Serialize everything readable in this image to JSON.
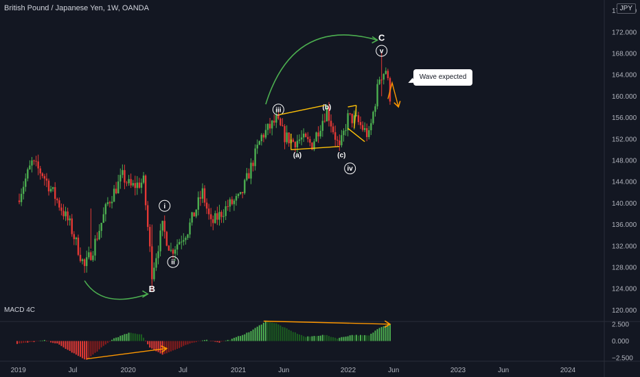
{
  "header": {
    "title": "British Pound / Japanese Yen, 1W, OANDA",
    "currency": "JPY",
    "indicator": "MACD 4C"
  },
  "colors": {
    "background": "#131722",
    "up": "#4caf50",
    "down": "#e53935",
    "macd_green": "#4caf50",
    "macd_light_green": "#1b5e20",
    "macd_red": "#e53935",
    "macd_dark_red": "#8b1c1c",
    "green_arrow": "#4caf50",
    "orange": "#ff9800",
    "yellow_line": "#ffc107",
    "label": "#ffffff"
  },
  "annotations": {
    "callout": "Wave expected",
    "wave_labels": {
      "B": "B",
      "C": "C",
      "i": "i",
      "ii": "ii",
      "iii": "iii",
      "iv": "iv",
      "v": "v",
      "a": "(a)",
      "b": "(b)",
      "c": "(c)"
    }
  },
  "chart_data": [
    {
      "type": "candlestick",
      "title": "British Pound / Japanese Yen, 1W, OANDA",
      "ylim": [
        118,
        178
      ],
      "y_ticks": [
        "176.000",
        "172.000",
        "168.000",
        "164.000",
        "160.000",
        "156.000",
        "152.000",
        "148.000",
        "144.000",
        "140.000",
        "136.000",
        "132.000",
        "128.000",
        "124.000",
        "120.000"
      ],
      "x_ticks": [
        "2019",
        "Jul",
        "2020",
        "Jul",
        "2021",
        "Jun",
        "2022",
        "Jun",
        "2023",
        "Jun",
        "2024"
      ],
      "close_path": [
        {
          "date": "2018-12-28",
          "close": 140.5
        },
        {
          "date": "2019-02-15",
          "close": 147.5
        },
        {
          "date": "2019-03-22",
          "close": 145.5
        },
        {
          "date": "2019-05-10",
          "close": 140.5
        },
        {
          "date": "2019-06-21",
          "close": 136.0
        },
        {
          "date": "2019-08-09",
          "close": 128.0
        },
        {
          "date": "2019-09-06",
          "close": 131.5
        },
        {
          "date": "2019-10-25",
          "close": 140.0
        },
        {
          "date": "2019-12-13",
          "close": 145.0
        },
        {
          "date": "2020-01-10",
          "close": 143.0
        },
        {
          "date": "2020-02-21",
          "close": 144.0
        },
        {
          "date": "2020-03-20",
          "close": 127.0
        },
        {
          "date": "2020-04-24",
          "close": 135.5
        },
        {
          "date": "2020-05-22",
          "close": 131.0
        },
        {
          "date": "2020-07-17",
          "close": 135.0
        },
        {
          "date": "2020-09-04",
          "close": 142.0
        },
        {
          "date": "2020-10-02",
          "close": 136.0
        },
        {
          "date": "2020-11-27",
          "close": 139.5
        },
        {
          "date": "2021-01-08",
          "close": 141.0
        },
        {
          "date": "2021-03-19",
          "close": 152.5
        },
        {
          "date": "2021-05-07",
          "close": 155.5
        },
        {
          "date": "2021-06-04",
          "close": 152.5
        },
        {
          "date": "2021-07-02",
          "close": 151.5
        },
        {
          "date": "2021-07-30",
          "close": 152.0
        },
        {
          "date": "2021-09-03",
          "close": 151.0
        },
        {
          "date": "2021-10-22",
          "close": 157.5
        },
        {
          "date": "2021-12-03",
          "close": 150.0
        },
        {
          "date": "2021-12-31",
          "close": 156.0
        },
        {
          "date": "2022-01-28",
          "close": 155.5
        },
        {
          "date": "2022-03-11",
          "close": 152.5
        },
        {
          "date": "2022-04-15",
          "close": 163.5
        },
        {
          "date": "2022-05-06",
          "close": 165.0
        },
        {
          "date": "2022-05-20",
          "close": 160.0
        }
      ],
      "wave_points": [
        {
          "label": "B",
          "date": "2020-03-20",
          "price": 124.0
        },
        {
          "label": "i",
          "date": "2020-05-01",
          "price": 139.5
        },
        {
          "label": "ii",
          "date": "2020-05-29",
          "price": 129.0
        },
        {
          "label": "iii",
          "date": "2021-05-14",
          "price": 157.5
        },
        {
          "label": "(a)",
          "date": "2021-07-16",
          "price": 149.0
        },
        {
          "label": "(b)",
          "date": "2021-10-22",
          "price": 158.0
        },
        {
          "label": "(c)",
          "date": "2021-12-10",
          "price": 149.0
        },
        {
          "label": "iv",
          "date": "2022-01-07",
          "price": 146.5
        },
        {
          "label": "v",
          "date": "2022-04-22",
          "price": 168.5
        },
        {
          "label": "C",
          "date": "2022-04-22",
          "price": 171.0
        }
      ]
    },
    {
      "type": "bar",
      "title": "MACD 4C",
      "ylim": [
        -3.0,
        3.0
      ],
      "y_ticks": [
        "2.500",
        "0.000",
        "−2.500"
      ],
      "anchors": [
        {
          "date": "2018-12-28",
          "value": -0.4
        },
        {
          "date": "2019-02-08",
          "value": -0.2
        },
        {
          "date": "2019-03-29",
          "value": 0.1
        },
        {
          "date": "2019-05-10",
          "value": -0.4
        },
        {
          "date": "2019-06-21",
          "value": -1.5
        },
        {
          "date": "2019-07-26",
          "value": -2.4
        },
        {
          "date": "2019-08-16",
          "value": -2.8
        },
        {
          "date": "2019-10-04",
          "value": -1.0
        },
        {
          "date": "2019-11-15",
          "value": 0.4
        },
        {
          "date": "2020-01-03",
          "value": 1.2
        },
        {
          "date": "2020-02-14",
          "value": 1.0
        },
        {
          "date": "2020-03-13",
          "value": -1.0
        },
        {
          "date": "2020-04-24",
          "value": -2.0
        },
        {
          "date": "2020-06-05",
          "value": -1.3
        },
        {
          "date": "2020-07-17",
          "value": -0.5
        },
        {
          "date": "2020-09-11",
          "value": 0.2
        },
        {
          "date": "2020-10-30",
          "value": -0.2
        },
        {
          "date": "2020-12-11",
          "value": 0.3
        },
        {
          "date": "2021-02-05",
          "value": 1.3
        },
        {
          "date": "2021-03-19",
          "value": 2.5
        },
        {
          "date": "2021-04-02",
          "value": 3.0
        },
        {
          "date": "2021-05-07",
          "value": 2.6
        },
        {
          "date": "2021-06-25",
          "value": 1.5
        },
        {
          "date": "2021-08-13",
          "value": 0.6
        },
        {
          "date": "2021-10-15",
          "value": 0.9
        },
        {
          "date": "2021-11-26",
          "value": 0.4
        },
        {
          "date": "2022-01-14",
          "value": 0.9
        },
        {
          "date": "2022-03-11",
          "value": 0.8
        },
        {
          "date": "2022-04-15",
          "value": 2.0
        },
        {
          "date": "2022-05-20",
          "value": 2.6
        }
      ]
    }
  ]
}
